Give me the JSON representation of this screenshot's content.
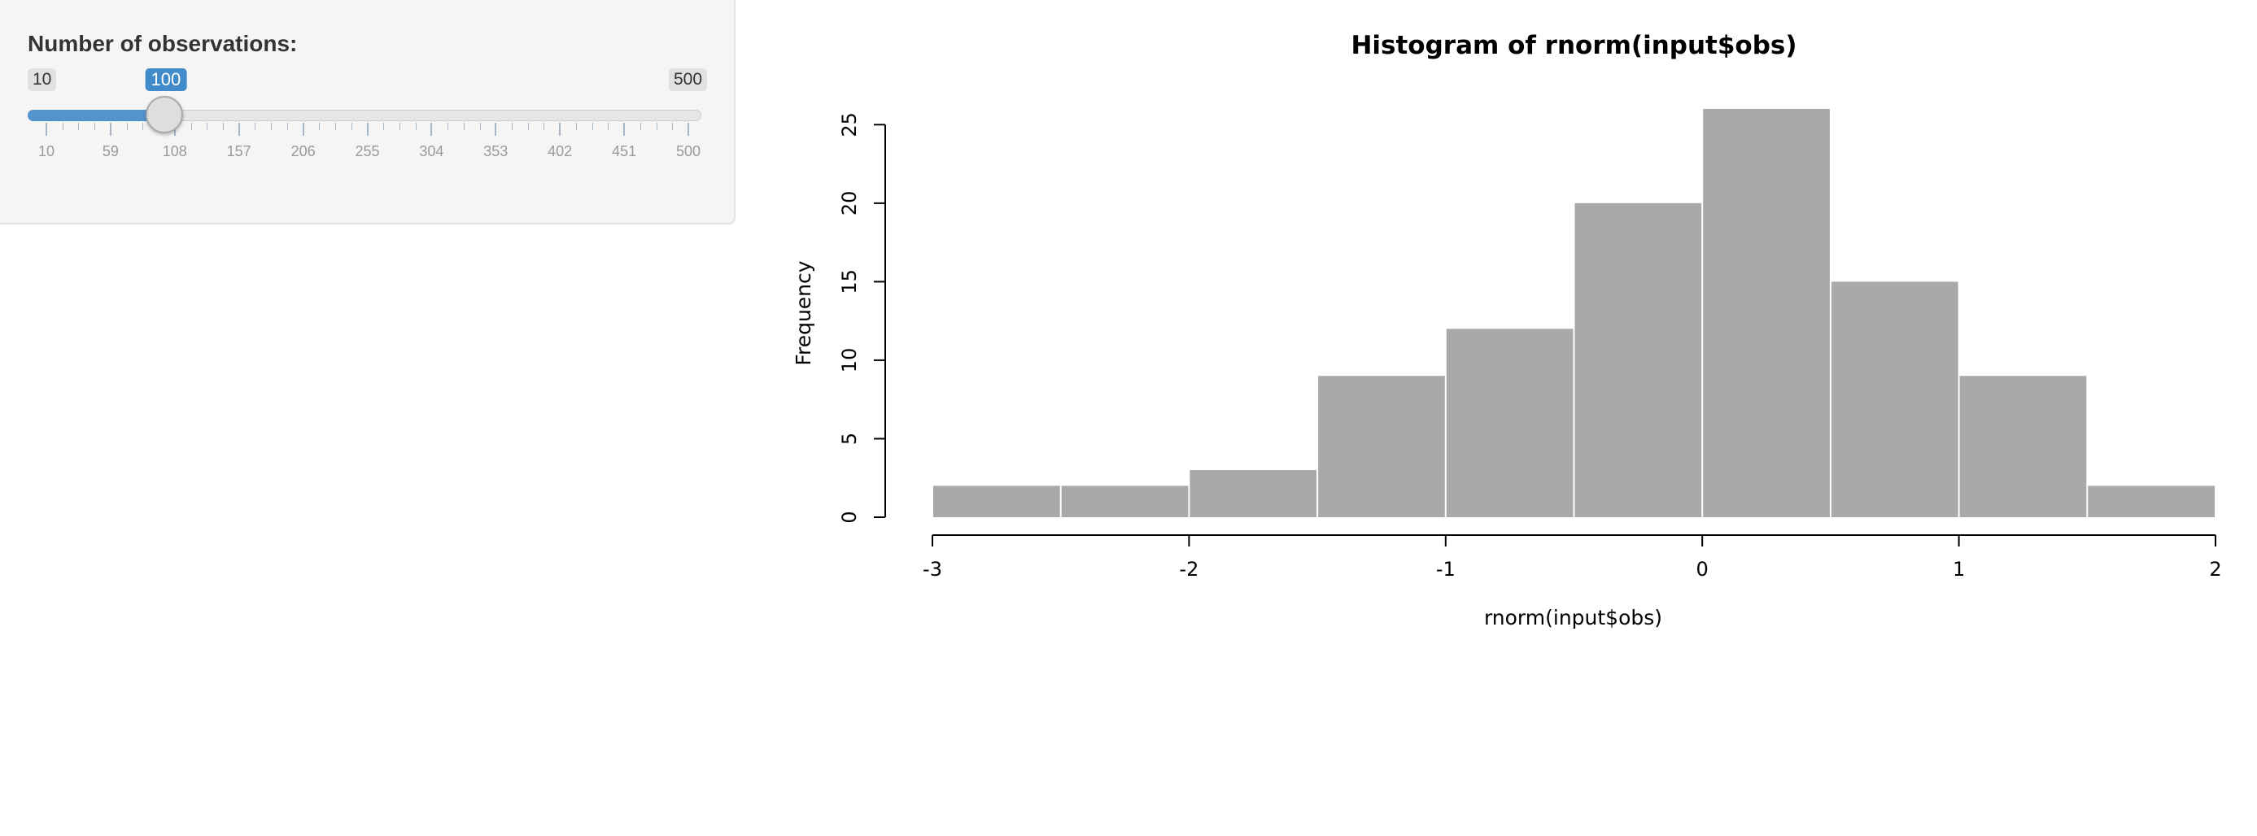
{
  "sidebar": {
    "label": "Number of observations:",
    "slider": {
      "min": 10,
      "max": 500,
      "value": 100,
      "min_label": "10",
      "max_label": "500",
      "value_label": "100",
      "tick_labels": [
        "10",
        "59",
        "108",
        "157",
        "206",
        "255",
        "304",
        "353",
        "402",
        "451",
        "500"
      ],
      "accent_color": "#428bca"
    }
  },
  "chart_data": {
    "type": "bar",
    "title": "Histogram of rnorm(input$obs)",
    "xlabel": "rnorm(input$obs)",
    "ylabel": "Frequency",
    "bins": [
      {
        "from": -3.0,
        "to": -2.5,
        "count": 2
      },
      {
        "from": -2.5,
        "to": -2.0,
        "count": 2
      },
      {
        "from": -2.0,
        "to": -1.5,
        "count": 3
      },
      {
        "from": -1.5,
        "to": -1.0,
        "count": 9
      },
      {
        "from": -1.0,
        "to": -0.5,
        "count": 12
      },
      {
        "from": -0.5,
        "to": 0.0,
        "count": 20
      },
      {
        "from": 0.0,
        "to": 0.5,
        "count": 26
      },
      {
        "from": 0.5,
        "to": 1.0,
        "count": 15
      },
      {
        "from": 1.0,
        "to": 1.5,
        "count": 9
      },
      {
        "from": 1.5,
        "to": 2.0,
        "count": 2
      }
    ],
    "x_ticks": [
      -3,
      -2,
      -1,
      0,
      1,
      2
    ],
    "x_tick_labels": [
      "-3",
      "-2",
      "-1",
      "0",
      "1",
      "2"
    ],
    "y_ticks": [
      0,
      5,
      10,
      15,
      20,
      25
    ],
    "y_tick_labels": [
      "0",
      "5",
      "10",
      "15",
      "20",
      "25"
    ],
    "xlim": [
      -3,
      2
    ],
    "ylim": [
      0,
      26
    ],
    "bar_color": "#a9a9a9",
    "grid": false
  }
}
